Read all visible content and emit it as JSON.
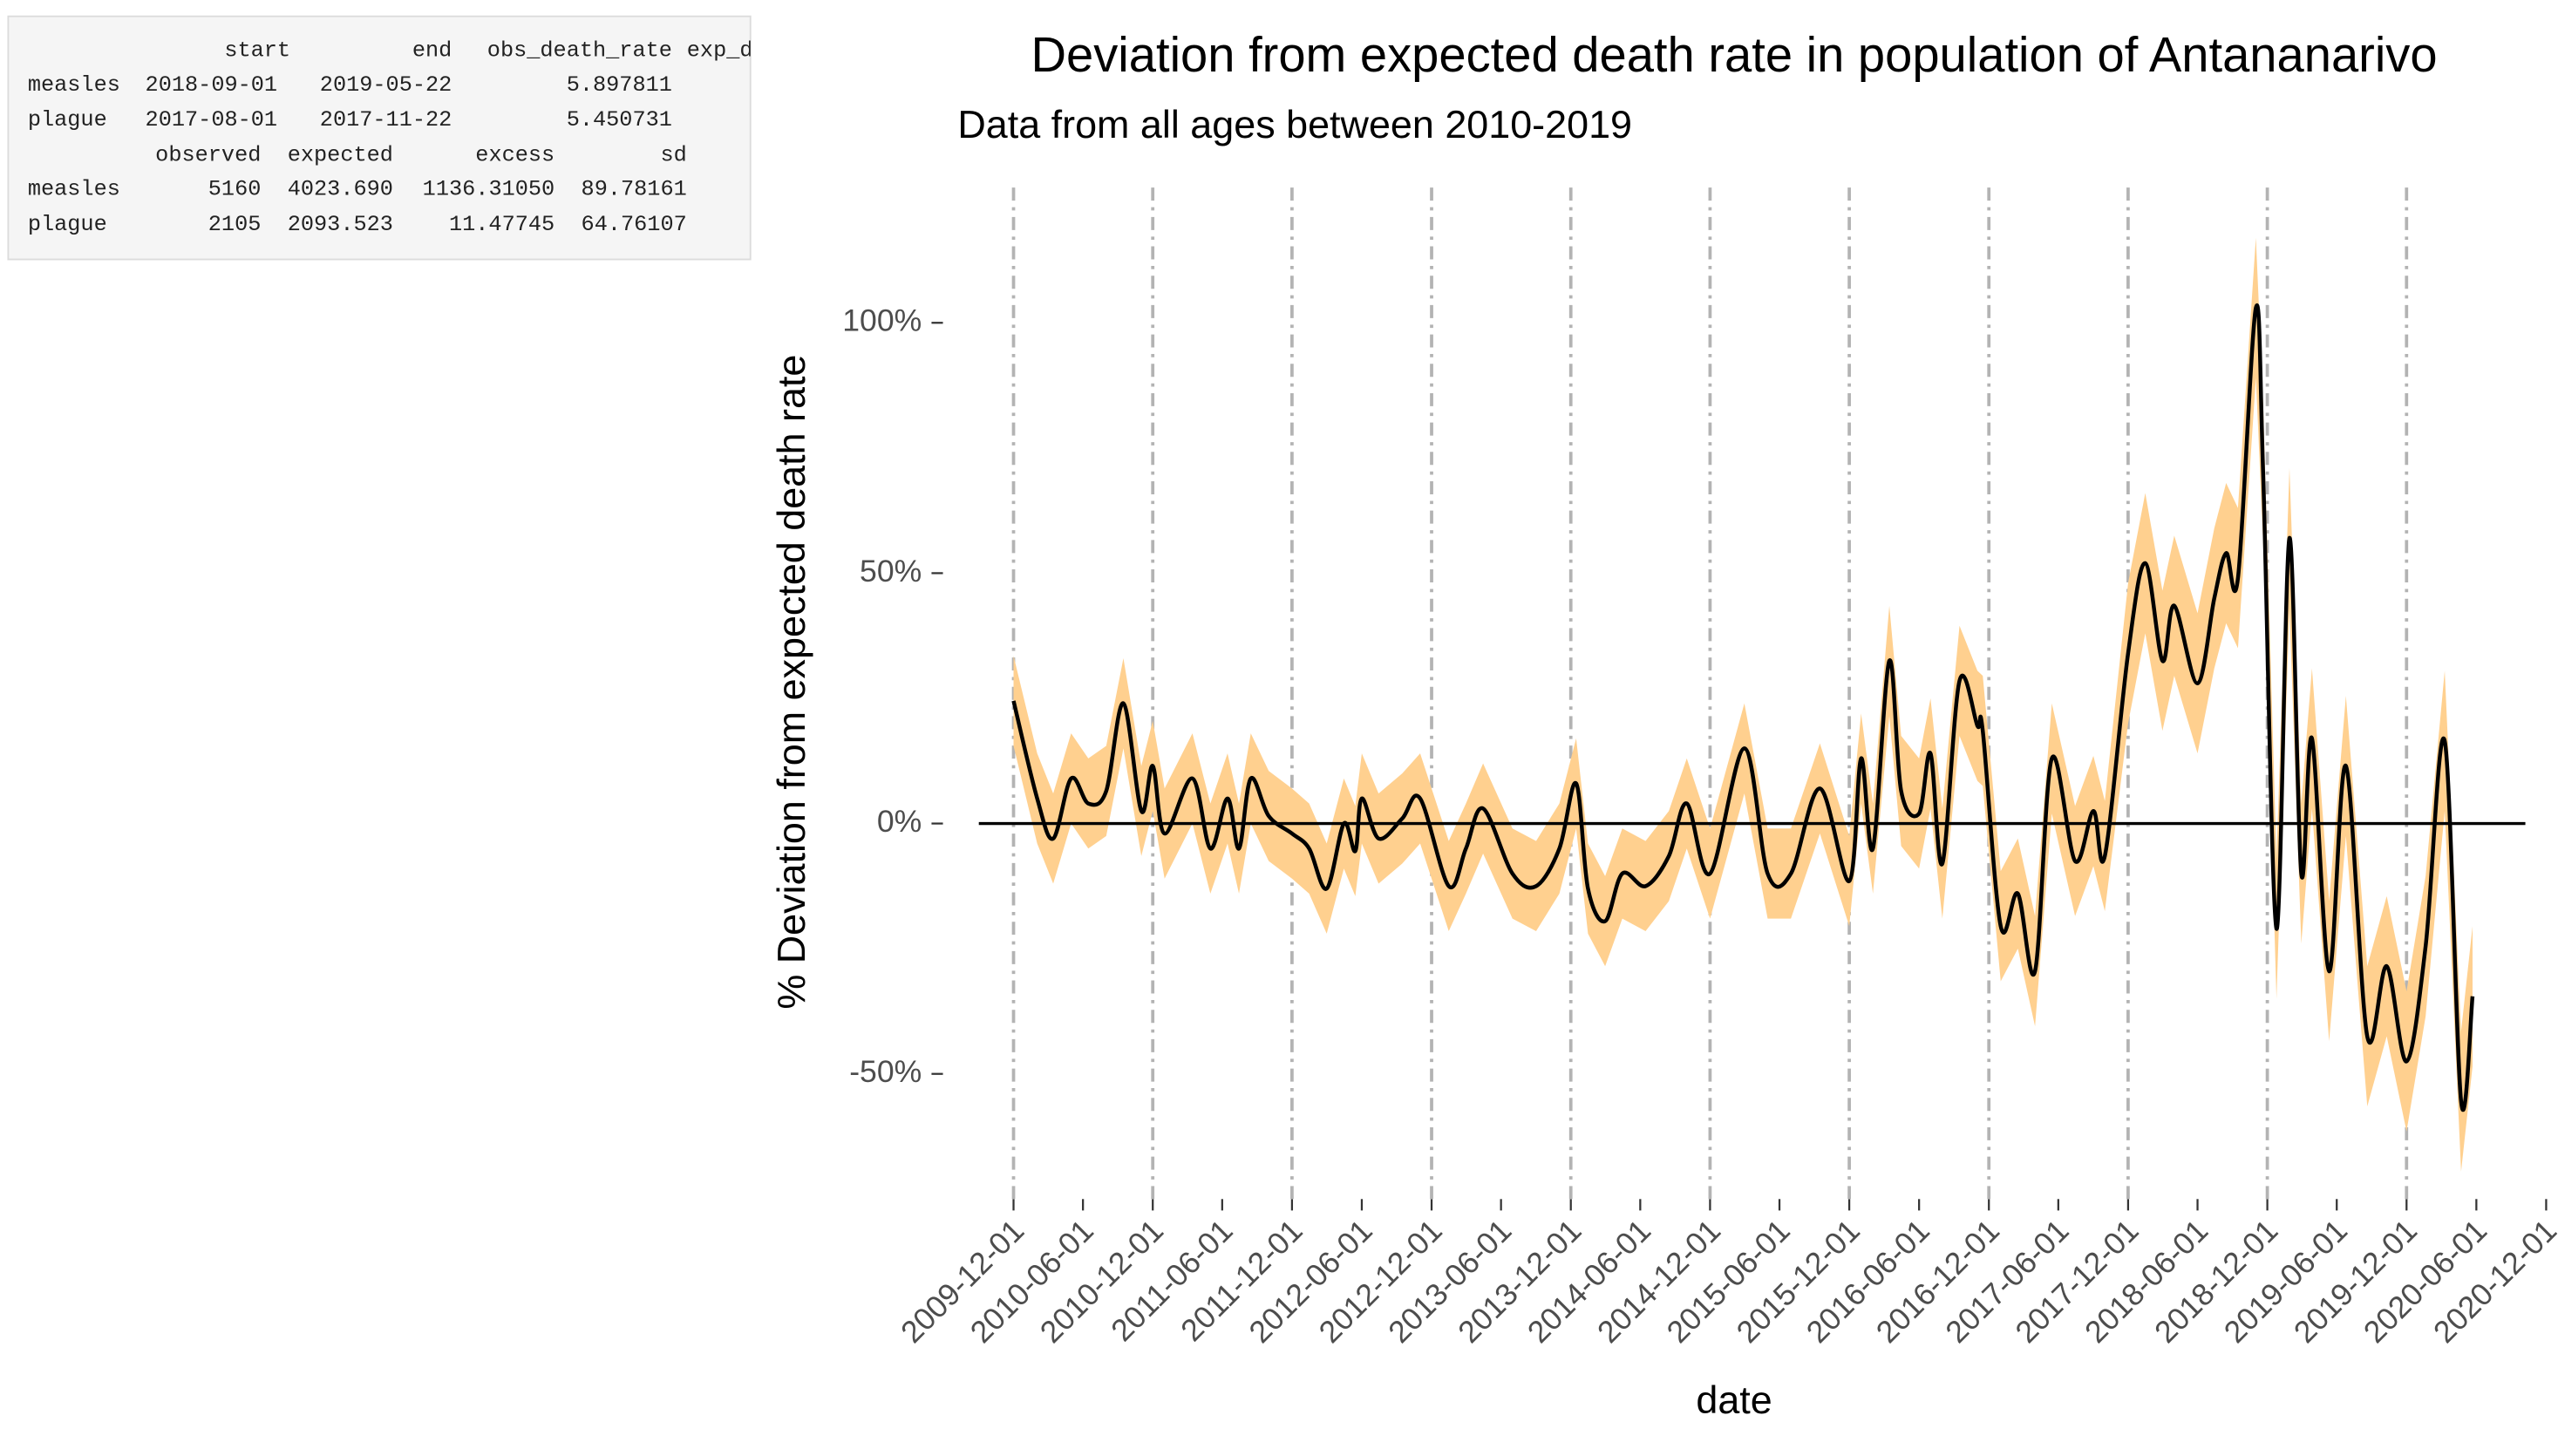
{
  "console": {
    "block1": {
      "header": [
        "start",
        "end",
        "obs_death_rate",
        "exp_d"
      ],
      "rows": [
        [
          "measles",
          "2018-09-01",
          "2019-05-22",
          "5.897811"
        ],
        [
          "plague",
          "2017-08-01",
          "2017-11-22",
          "5.450731"
        ]
      ]
    },
    "block2": {
      "header": [
        "observed",
        "expected",
        "excess",
        "sd"
      ],
      "rows": [
        [
          "measles",
          "5160",
          "4023.690",
          "1136.31050",
          "89.78161"
        ],
        [
          "plague",
          "2105",
          "2093.523",
          "11.47745",
          "64.76107"
        ]
      ]
    }
  },
  "chart_data": {
    "type": "line",
    "title": "Deviation from expected death rate in population of Antananarivo",
    "subtitle": "Data from all ages between 2010-2019",
    "x_label": "date",
    "y_label": "% Deviation from expected death rate",
    "x": [
      "2009-12-01",
      "2010-02-01",
      "2010-03-15",
      "2010-05-01",
      "2010-06-15",
      "2010-08-01",
      "2010-09-15",
      "2010-11-01",
      "2010-12-01",
      "2011-01-01",
      "2011-03-15",
      "2011-05-01",
      "2011-06-15",
      "2011-07-15",
      "2011-08-15",
      "2011-10-01",
      "2011-12-01",
      "2012-01-15",
      "2012-03-01",
      "2012-04-15",
      "2012-05-15",
      "2012-06-01",
      "2012-07-15",
      "2012-09-15",
      "2012-11-01",
      "2013-01-15",
      "2013-03-01",
      "2013-04-15",
      "2013-07-01",
      "2013-09-01",
      "2013-11-01",
      "2013-12-15",
      "2014-01-15",
      "2014-03-01",
      "2014-04-15",
      "2014-06-15",
      "2014-08-15",
      "2014-10-01",
      "2014-12-01",
      "2015-03-01",
      "2015-05-01",
      "2015-07-01",
      "2015-09-15",
      "2015-12-01",
      "2016-01-01",
      "2016-02-01",
      "2016-03-15",
      "2016-04-15",
      "2016-06-01",
      "2016-07-01",
      "2016-08-01",
      "2016-09-15",
      "2016-11-01",
      "2016-11-15",
      "2017-01-01",
      "2017-02-15",
      "2017-04-01",
      "2017-05-15",
      "2017-07-15",
      "2017-09-01",
      "2017-10-01",
      "2017-12-01",
      "2018-01-15",
      "2018-03-01",
      "2018-04-01",
      "2018-06-01",
      "2018-07-15",
      "2018-08-15",
      "2018-09-15",
      "2018-11-01",
      "2018-11-20",
      "2018-12-25",
      "2019-01-28",
      "2019-02-28",
      "2019-03-28",
      "2019-05-12",
      "2019-06-25",
      "2019-08-20",
      "2019-10-10",
      "2019-12-01",
      "2020-01-20",
      "2020-03-10",
      "2020-04-22",
      "2020-05-22"
    ],
    "series": [
      {
        "color": "#000000",
        "band_color": "#ffd08f",
        "values": [
          24.5,
          5,
          -3,
          9,
          4,
          6.5,
          24,
          2.5,
          11.5,
          -2,
          9,
          -5,
          5,
          -5,
          9,
          1.5,
          -2,
          -5,
          -13,
          0,
          -5.5,
          5,
          -3,
          1,
          5,
          -12.5,
          -5,
          3,
          -10,
          -12.5,
          -5,
          8,
          -13,
          -19.5,
          -10,
          -12.5,
          -6.5,
          4,
          -10,
          15,
          -10,
          -10,
          7,
          -11.5,
          13,
          -5,
          32.5,
          6.5,
          2,
          14,
          -8,
          28.5,
          19.5,
          18.5,
          -20.5,
          -14,
          -29.5,
          13,
          -7.5,
          2.5,
          -6.5,
          34,
          52,
          32.5,
          43.5,
          28,
          45,
          54,
          49,
          103,
          70,
          -21,
          57,
          -10,
          17,
          -29.5,
          11.5,
          -42.5,
          -28.5,
          -47.5,
          -24.5,
          16.5,
          -55.5,
          -34.5
        ],
        "lower": [
          15.5,
          -4,
          -12,
          0,
          -5,
          -2.5,
          15,
          -6.5,
          2.5,
          -11,
          0,
          -14,
          -4,
          -14,
          0,
          -7.5,
          -11,
          -14,
          -22,
          -9,
          -14.5,
          -4,
          -12,
          -8,
          -4,
          -21.5,
          -14,
          -6,
          -19,
          -21.5,
          -14,
          -1,
          -22,
          -28.5,
          -19,
          -21.5,
          -15.5,
          -5,
          -19,
          6,
          -19,
          -19,
          -2,
          -20.5,
          4,
          -14,
          21.5,
          -4.5,
          -9,
          3,
          -19,
          17.5,
          8.5,
          7.5,
          -31.5,
          -25,
          -40.5,
          2,
          -18.5,
          -8.5,
          -17.5,
          20,
          38,
          18.5,
          29.5,
          14,
          31,
          40,
          35,
          89,
          56,
          -35,
          43,
          -24,
          3,
          -43.5,
          -2.5,
          -56.5,
          -42.5,
          -61.5,
          -38.5,
          2.5,
          -69.5,
          -48.5
        ],
        "upper": [
          33.5,
          14,
          6,
          18,
          13,
          15.5,
          33,
          11.5,
          20.5,
          7,
          18,
          4,
          14,
          4,
          18,
          10.5,
          7,
          4,
          -4,
          9,
          3.5,
          14,
          6,
          10,
          14,
          -3.5,
          4,
          12,
          -1,
          -3.5,
          4,
          17,
          -4,
          -10.5,
          -1,
          -3.5,
          2.5,
          13,
          -1,
          24,
          -1,
          -1,
          16,
          -2.5,
          22,
          4,
          43.5,
          17.5,
          13,
          25,
          3,
          39.5,
          30.5,
          29.5,
          -9.5,
          -3,
          -18.5,
          24,
          3.5,
          13.5,
          4.5,
          48,
          66,
          46.5,
          57.5,
          42,
          59,
          68,
          63,
          117,
          84,
          -7,
          71,
          4,
          31,
          -15.5,
          25.5,
          -28.5,
          -14.5,
          -33.5,
          -10.5,
          30.5,
          -41.5,
          -20.5
        ]
      }
    ],
    "xlim": [
      "2009-09-01",
      "2021-01-01"
    ],
    "xticks": [
      "2009-12-01",
      "2010-06-01",
      "2010-12-01",
      "2011-06-01",
      "2011-12-01",
      "2012-06-01",
      "2012-12-01",
      "2013-06-01",
      "2013-12-01",
      "2014-06-01",
      "2014-12-01",
      "2015-06-01",
      "2015-12-01",
      "2016-06-01",
      "2016-12-01",
      "2017-06-01",
      "2017-12-01",
      "2018-06-01",
      "2018-12-01",
      "2019-06-01",
      "2019-12-01",
      "2020-06-01",
      "2020-12-01"
    ],
    "ylim": [
      -75,
      127
    ],
    "yticks": [
      {
        "value": -50,
        "label": "-50%"
      },
      {
        "value": 0,
        "label": "0%"
      },
      {
        "value": 50,
        "label": "50%"
      },
      {
        "value": 100,
        "label": "100%"
      }
    ],
    "vlines": [
      "2009-12-01",
      "2010-12-01",
      "2011-12-01",
      "2012-12-01",
      "2013-12-01",
      "2014-12-01",
      "2015-12-01",
      "2016-12-01",
      "2017-12-01",
      "2018-12-01",
      "2019-12-01"
    ],
    "vline_color": "#b3b3b3",
    "hline": 0,
    "hline_color": "#000000",
    "grid": false
  }
}
